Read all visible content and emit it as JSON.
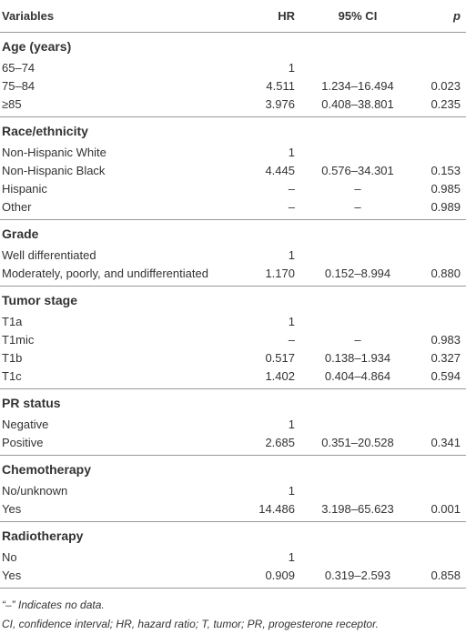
{
  "header": {
    "variables": "Variables",
    "hr": "HR",
    "ci": "95% CI",
    "p": "p"
  },
  "sections": [
    {
      "title": "Age (years)",
      "rows": [
        [
          "65–74",
          "1",
          null,
          null
        ],
        [
          "75–84",
          "4.511",
          "1.234–16.494",
          "0.023"
        ],
        [
          "≥85",
          "3.976",
          "0.408–38.801",
          "0.235"
        ]
      ]
    },
    {
      "title": "Race/ethnicity",
      "rows": [
        [
          "Non-Hispanic White",
          "1",
          null,
          null
        ],
        [
          "Non-Hispanic Black",
          "4.445",
          "0.576–34.301",
          "0.153"
        ],
        [
          "Hispanic",
          "–",
          "–",
          "0.985"
        ],
        [
          "Other",
          "–",
          "–",
          "0.989"
        ]
      ]
    },
    {
      "title": "Grade",
      "rows": [
        [
          "Well differentiated",
          "1",
          null,
          null
        ],
        [
          "Moderately, poorly, and undifferentiated",
          "1.170",
          "0.152–8.994",
          "0.880"
        ]
      ]
    },
    {
      "title": "Tumor stage",
      "rows": [
        [
          "T1a",
          "1",
          null,
          null
        ],
        [
          "T1mic",
          "–",
          "–",
          "0.983"
        ],
        [
          "T1b",
          "0.517",
          "0.138–1.934",
          "0.327"
        ],
        [
          "T1c",
          "1.402",
          "0.404–4.864",
          "0.594"
        ]
      ]
    },
    {
      "title": "PR status",
      "rows": [
        [
          "Negative",
          "1",
          null,
          null
        ],
        [
          "Positive",
          "2.685",
          "0.351–20.528",
          "0.341"
        ]
      ]
    },
    {
      "title": "Chemotherapy",
      "rows": [
        [
          "No/unknown",
          "1",
          null,
          null
        ],
        [
          "Yes",
          "14.486",
          "3.198–65.623",
          "0.001"
        ]
      ]
    },
    {
      "title": "Radiotherapy",
      "rows": [
        [
          "No",
          "1",
          null,
          null
        ],
        [
          "Yes",
          "0.909",
          "0.319–2.593",
          "0.858"
        ]
      ]
    }
  ],
  "footnotes": [
    "“–” Indicates no data.",
    "CI, confidence interval; HR, hazard ratio; T, tumor; PR, progesterone receptor."
  ]
}
